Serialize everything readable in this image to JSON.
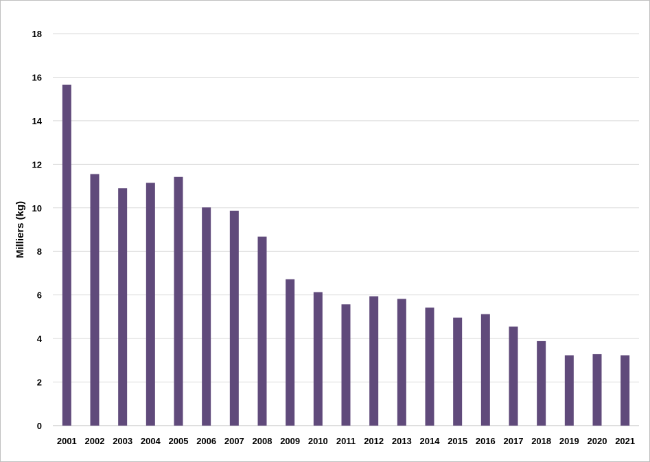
{
  "chart_data": {
    "type": "bar",
    "title": "",
    "xlabel": "",
    "ylabel": "Milliers (kg)",
    "categories": [
      "2001",
      "2002",
      "2003",
      "2004",
      "2005",
      "2006",
      "2007",
      "2008",
      "2009",
      "2010",
      "2011",
      "2012",
      "2013",
      "2014",
      "2015",
      "2016",
      "2017",
      "2018",
      "2019",
      "2020",
      "2021"
    ],
    "values": [
      15.65,
      11.55,
      10.9,
      11.15,
      11.42,
      10.02,
      9.87,
      8.68,
      6.72,
      6.13,
      5.57,
      5.94,
      5.82,
      5.42,
      4.96,
      5.12,
      4.55,
      3.88,
      3.23,
      3.28,
      3.23
    ],
    "yticks": [
      "0",
      "2",
      "4",
      "6",
      "8",
      "10",
      "12",
      "14",
      "16",
      "18"
    ],
    "ylim": [
      0,
      18
    ],
    "grid": true,
    "legend": "none",
    "colors": {
      "bar": "#604a7b",
      "grid": "#d9d9d9",
      "axis": "#bfbfbf"
    }
  }
}
